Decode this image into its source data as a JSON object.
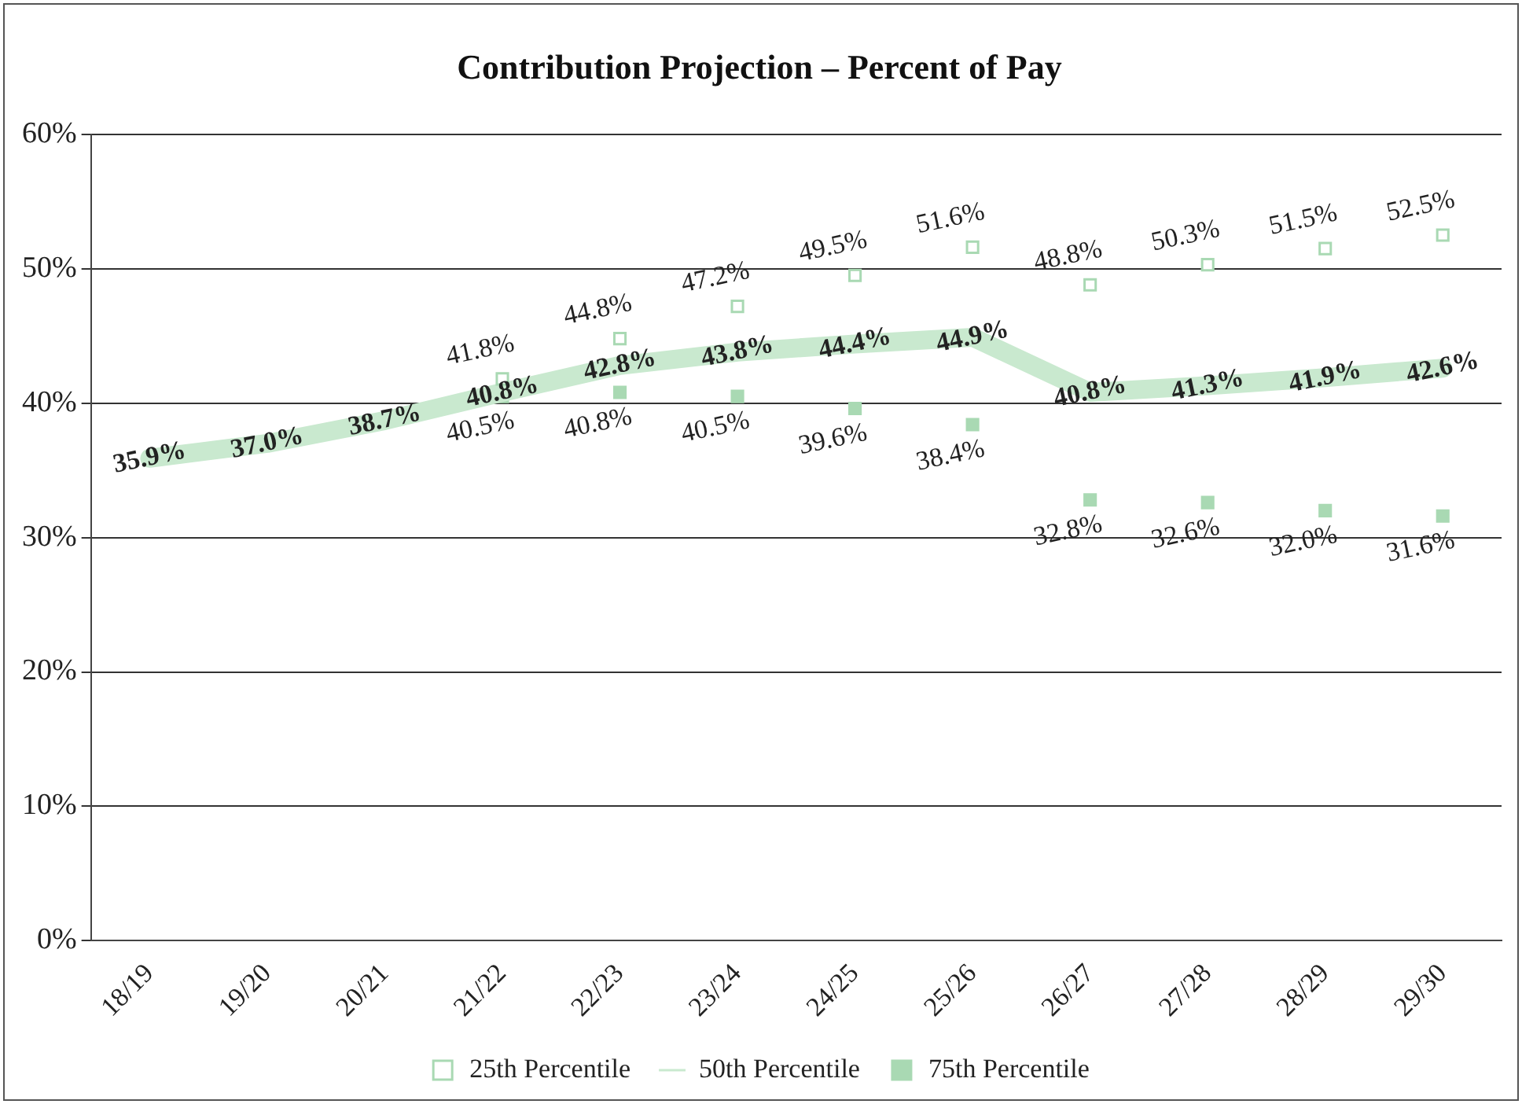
{
  "chart_data": {
    "type": "line",
    "title": "Contribution Projection – Percent of Pay",
    "categories": [
      "18/19",
      "19/20",
      "20/21",
      "21/22",
      "22/23",
      "23/24",
      "24/25",
      "25/26",
      "26/27",
      "27/28",
      "28/29",
      "29/30"
    ],
    "series": [
      {
        "name": "25th Percentile",
        "type": "scatter",
        "color": "#a9d9b3",
        "marker": "square",
        "values": [
          null,
          null,
          null,
          41.8,
          44.8,
          47.2,
          49.5,
          51.6,
          48.8,
          50.3,
          51.5,
          52.5
        ],
        "value_labels": [
          null,
          null,
          null,
          "41.8%",
          "44.8%",
          "47.2%",
          "49.5%",
          "51.6%",
          "48.8%",
          "50.3%",
          "51.5%",
          "52.5%"
        ]
      },
      {
        "name": "50th Percentile",
        "color": "#c9e9cf",
        "marker": "none",
        "line_style": "solid",
        "values": [
          35.9,
          37.0,
          38.7,
          40.8,
          42.8,
          43.8,
          44.4,
          44.9,
          40.8,
          41.3,
          41.9,
          42.6
        ],
        "value_labels": [
          "35.9%",
          "37.0%",
          "38.7%",
          "40.8%",
          "42.8%",
          "43.8%",
          "44.4%",
          "44.9%",
          "40.8%",
          "41.3%",
          "41.9%",
          "42.6%"
        ]
      },
      {
        "name": "75th Percentile",
        "type": "scatter",
        "color": "#a9d9b3",
        "marker": "square",
        "values": [
          null,
          null,
          null,
          40.5,
          40.8,
          40.5,
          39.6,
          38.4,
          32.8,
          32.6,
          32.0,
          31.6
        ],
        "value_labels": [
          null,
          null,
          null,
          "40.5%",
          "40.8%",
          "40.5%",
          "39.6%",
          "38.4%",
          "32.8%",
          "32.6%",
          "32.0%",
          "31.6%"
        ]
      }
    ],
    "ylim": [
      0,
      60
    ],
    "yticks": [
      {
        "value": 0,
        "label": "0%"
      },
      {
        "value": 10,
        "label": "10%"
      },
      {
        "value": 20,
        "label": "20%"
      },
      {
        "value": 30,
        "label": "30%"
      },
      {
        "value": 40,
        "label": "40%"
      },
      {
        "value": 50,
        "label": "50%"
      },
      {
        "value": 60,
        "label": "60%"
      }
    ],
    "grid": "y",
    "legend": "bottom"
  }
}
